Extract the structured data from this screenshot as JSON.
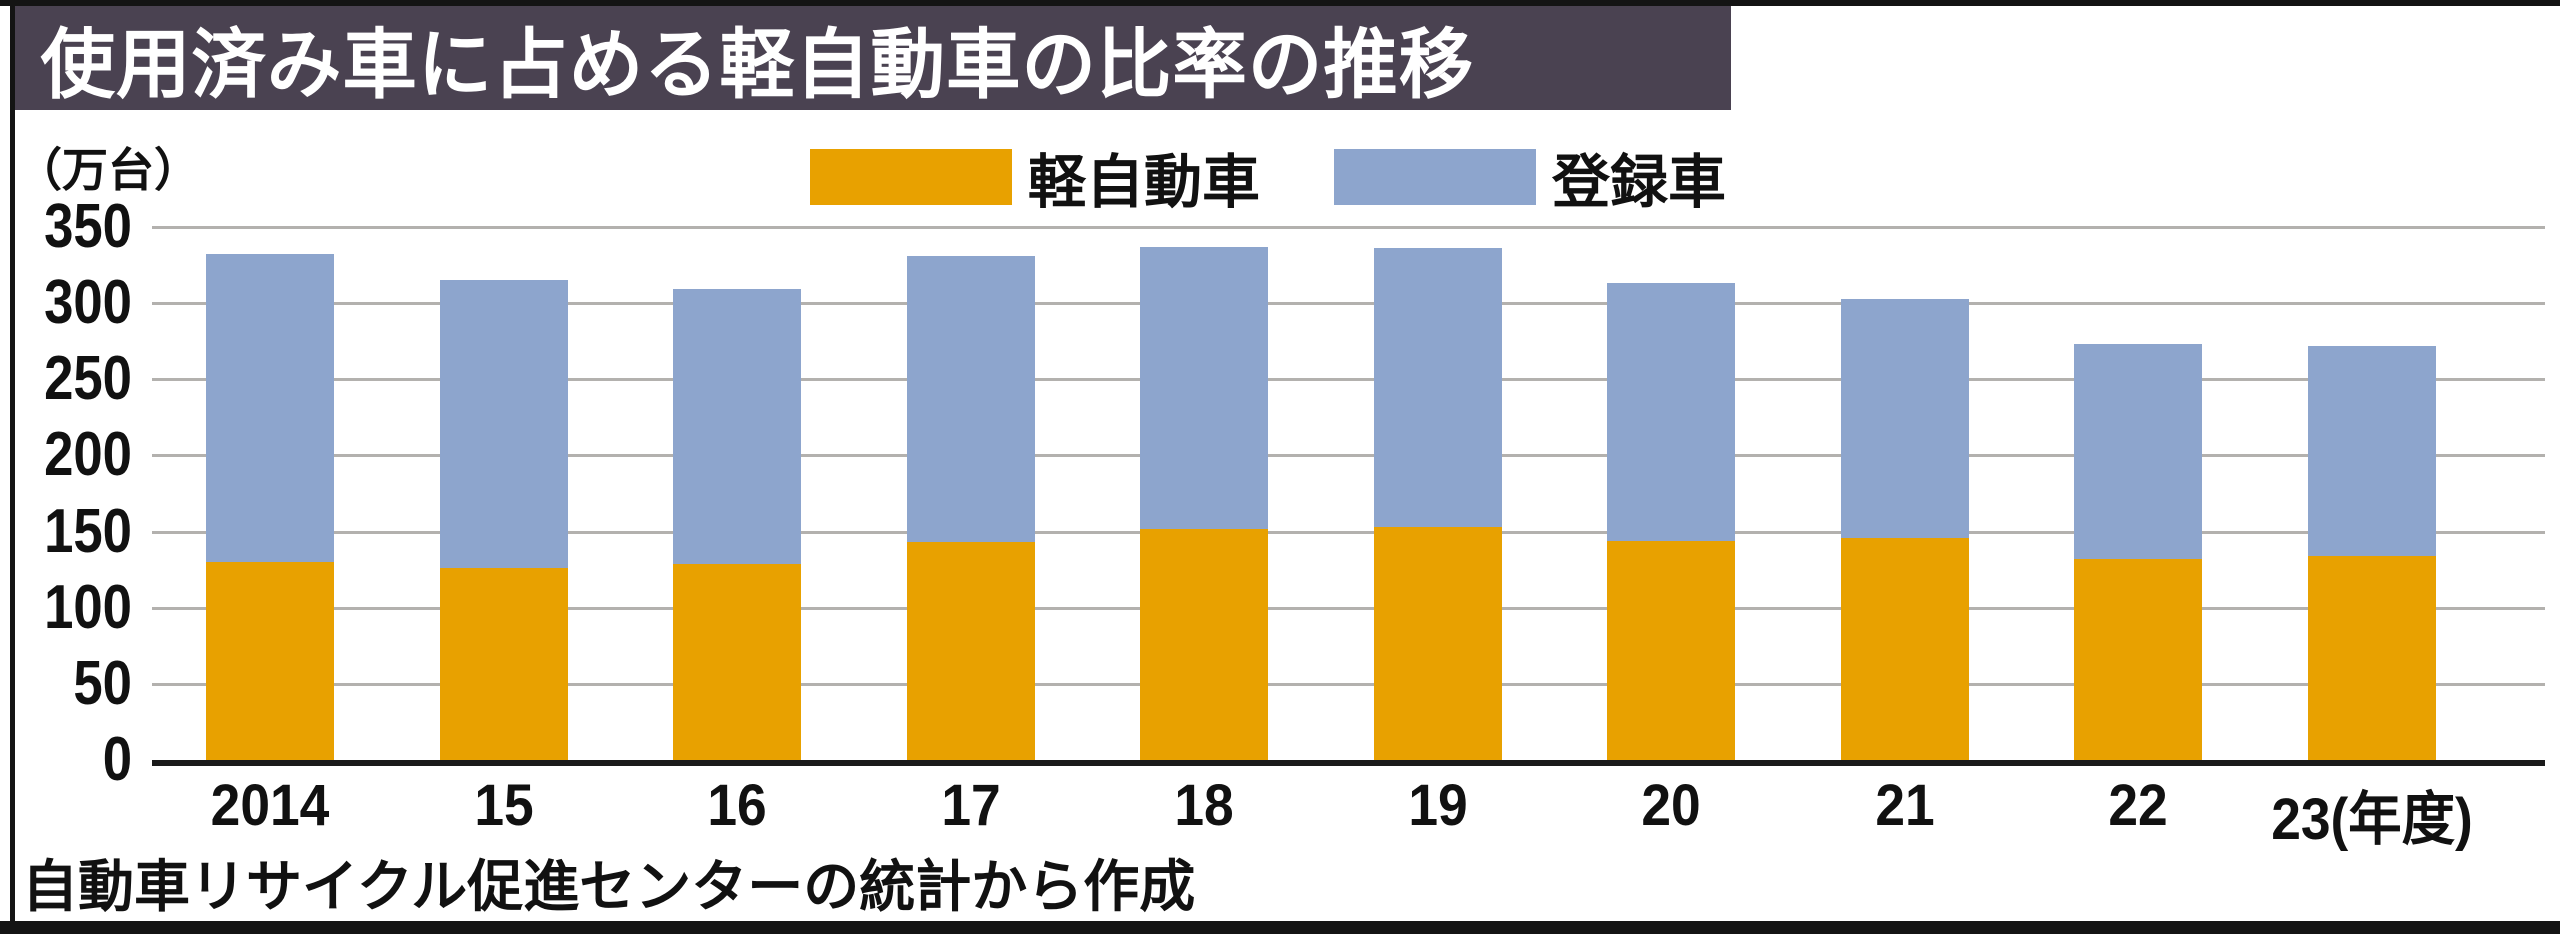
{
  "title": "使用済み車に占める軽自動車の比率の推移",
  "unit_label": "（万台）",
  "legend": {
    "kei_label": "軽自動車",
    "registered_label": "登録車"
  },
  "source": "自動車リサイクル促進センターの統計から作成",
  "colors": {
    "kei": "#e8a100",
    "registered": "#8da5cd",
    "title_bg": "#4a4251",
    "title_text": "#ffffff",
    "gridline": "#b3b1ae",
    "axis": "#1a1a1a",
    "frame": "#141414"
  },
  "chart_data": {
    "type": "bar",
    "stacked": true,
    "title": "使用済み車に占める軽自動車の比率の推移",
    "categories": [
      "2014",
      "15",
      "16",
      "17",
      "18",
      "19",
      "20",
      "21",
      "22",
      "23"
    ],
    "x_tick_labels": [
      "2014",
      "15",
      "16",
      "17",
      "18",
      "19",
      "20",
      "21",
      "22",
      "23(年度)"
    ],
    "x_axis_unit_suffix": "(年度)",
    "series": [
      {
        "name": "軽自動車",
        "color": "#e8a100",
        "values": [
          130,
          126,
          129,
          143,
          152,
          153,
          144,
          146,
          132,
          134
        ]
      },
      {
        "name": "登録車",
        "color": "#8da5cd",
        "values": [
          202,
          189,
          180,
          188,
          185,
          183,
          169,
          157,
          141,
          138
        ]
      }
    ],
    "totals": [
      332,
      315,
      309,
      331,
      337,
      336,
      313,
      303,
      273,
      272
    ],
    "xlabel": "年度",
    "ylabel": "（万台）",
    "ylim": [
      0,
      350
    ],
    "ytick_step": 50,
    "ytick_labels": [
      "0",
      "50",
      "100",
      "150",
      "200",
      "250",
      "300",
      "350"
    ],
    "grid": true,
    "legend_position": "top-center",
    "source": "自動車リサイクル促進センターの統計から作成"
  }
}
